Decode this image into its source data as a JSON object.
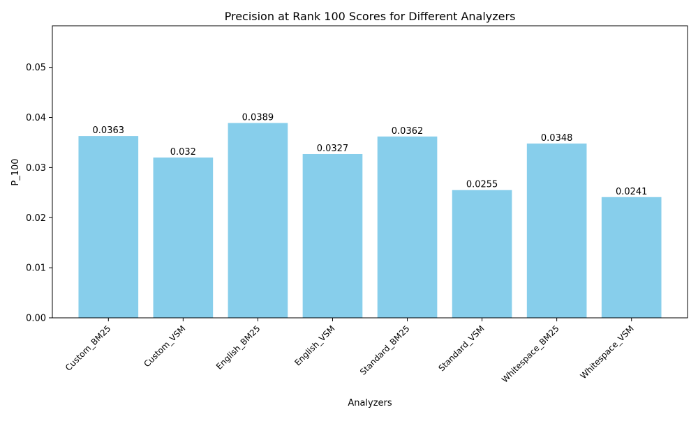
{
  "chart_data": {
    "type": "bar",
    "title": "Precision at Rank 100 Scores for Different Analyzers",
    "xlabel": "Analyzers",
    "ylabel": "P_100",
    "categories": [
      "Custom_BM25",
      "Custom_VSM",
      "English_BM25",
      "English_VSM",
      "Standard_BM25",
      "Standard_VSM",
      "Whitespace_BM25",
      "Whitespace_VSM"
    ],
    "values": [
      0.0363,
      0.032,
      0.0389,
      0.0327,
      0.0362,
      0.0255,
      0.0348,
      0.0241
    ],
    "value_labels": [
      "0.0363",
      "0.032",
      "0.0389",
      "0.0327",
      "0.0362",
      "0.0255",
      "0.0348",
      "0.0241"
    ],
    "ylim": [
      0,
      0.0583
    ],
    "yticks": [
      0.0,
      0.01,
      0.02,
      0.03,
      0.04,
      0.05
    ],
    "ytick_labels": [
      "0.00",
      "0.01",
      "0.02",
      "0.03",
      "0.04",
      "0.05"
    ],
    "grid": false,
    "legend": "none",
    "bar_color": "#87ceeb"
  }
}
